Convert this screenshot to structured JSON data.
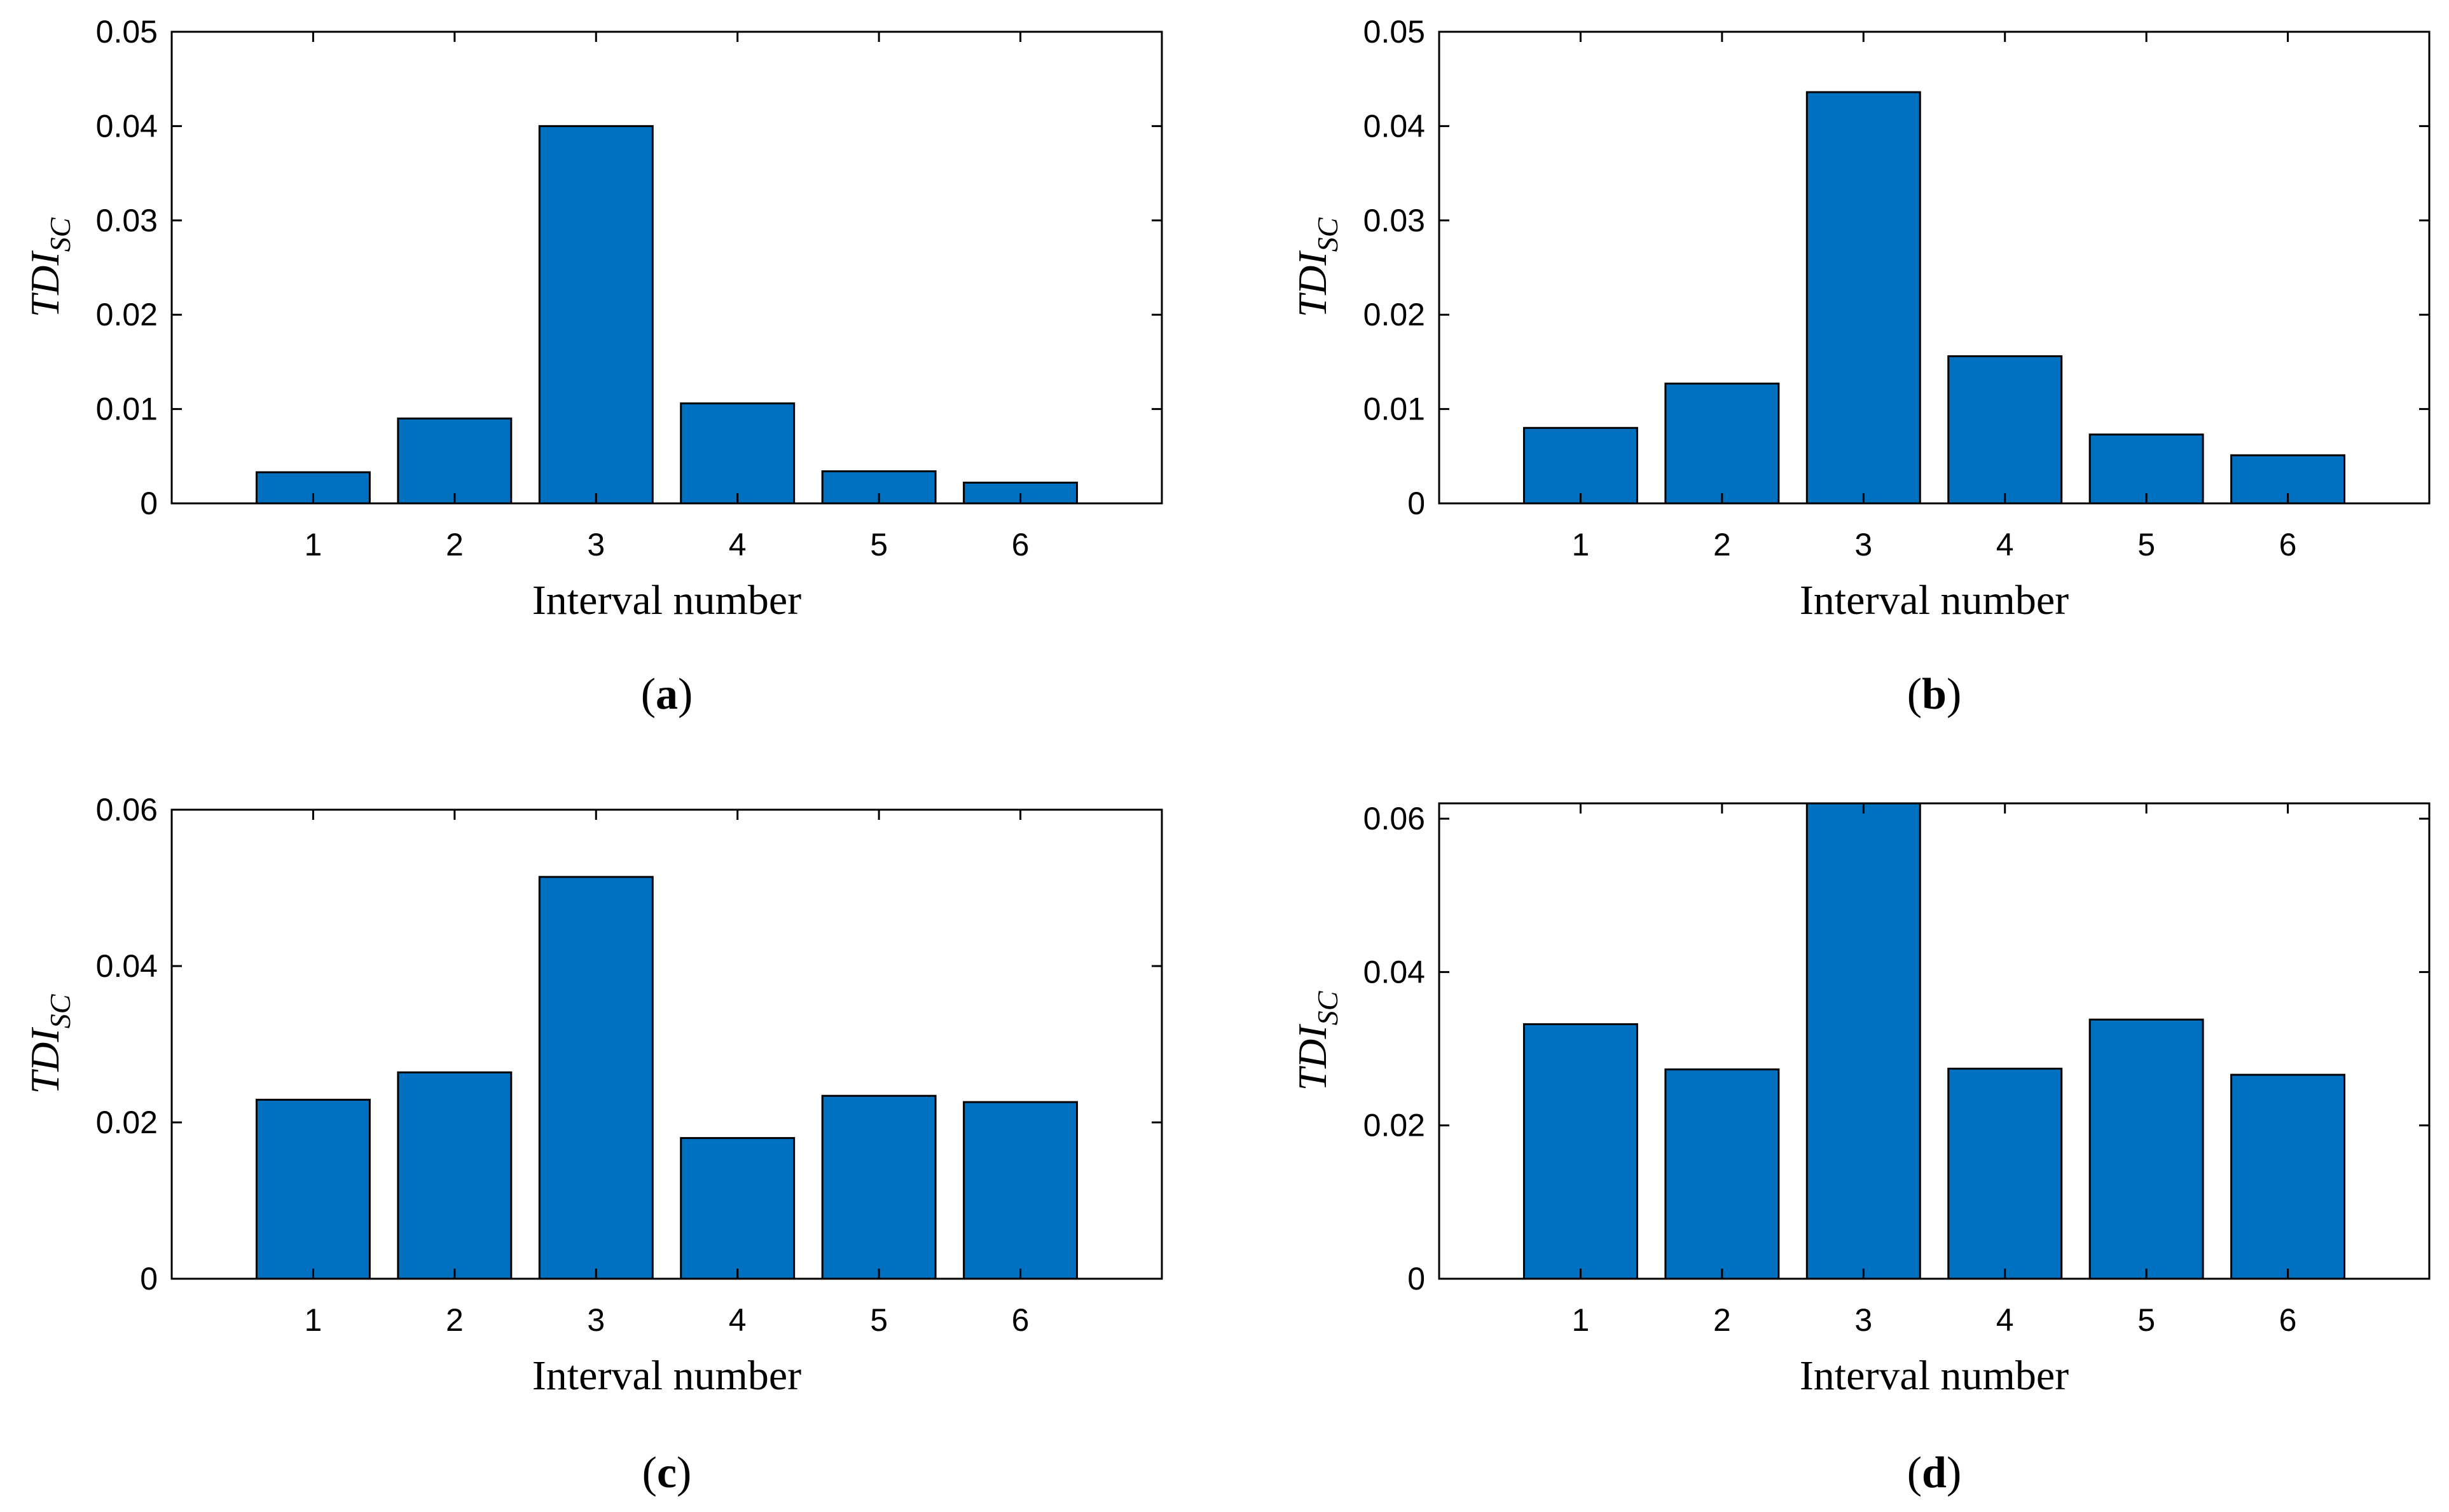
{
  "colors": {
    "bar_fill": "#0070C0",
    "bar_stroke": "#000000",
    "axes": "#000000"
  },
  "chart_data": [
    {
      "panel": "a",
      "caption_open": "(",
      "caption_letter": "a",
      "caption_close": ")",
      "type": "bar",
      "categories": [
        "1",
        "2",
        "3",
        "4",
        "5",
        "6"
      ],
      "values": [
        0.0033,
        0.009,
        0.04,
        0.0106,
        0.0034,
        0.0022
      ],
      "xlabel": "Interval number",
      "ylabel_main": "TDI",
      "ylabel_sub": "SC",
      "ylim": [
        0,
        0.05
      ],
      "yticks": [
        "0",
        "0.01",
        "0.02",
        "0.03",
        "0.04",
        "0.05"
      ],
      "ytick_values": [
        0,
        0.01,
        0.02,
        0.03,
        0.04,
        0.05
      ],
      "xlim": [
        0,
        7
      ]
    },
    {
      "panel": "b",
      "caption_open": "(",
      "caption_letter": "b",
      "caption_close": ")",
      "type": "bar",
      "categories": [
        "1",
        "2",
        "3",
        "4",
        "5",
        "6"
      ],
      "values": [
        0.008,
        0.0127,
        0.0436,
        0.0156,
        0.0073,
        0.0051
      ],
      "xlabel": "Interval number",
      "ylabel_main": "TDI",
      "ylabel_sub": "SC",
      "ylim": [
        0,
        0.05
      ],
      "yticks": [
        "0",
        "0.01",
        "0.02",
        "0.03",
        "0.04",
        "0.05"
      ],
      "ytick_values": [
        0,
        0.01,
        0.02,
        0.03,
        0.04,
        0.05
      ],
      "xlim": [
        0,
        7
      ]
    },
    {
      "panel": "c",
      "caption_open": "(",
      "caption_letter": "c",
      "caption_close": ")",
      "type": "bar",
      "categories": [
        "1",
        "2",
        "3",
        "4",
        "5",
        "6"
      ],
      "values": [
        0.0229,
        0.0264,
        0.0514,
        0.018,
        0.0234,
        0.0226
      ],
      "xlabel": "Interval number",
      "ylabel_main": "TDI",
      "ylabel_sub": "SC",
      "ylim": [
        0,
        0.06
      ],
      "yticks": [
        "0",
        "0.02",
        "0.04",
        "0.06"
      ],
      "ytick_values": [
        0,
        0.02,
        0.04,
        0.06
      ],
      "xlim": [
        0,
        7
      ]
    },
    {
      "panel": "d",
      "caption_open": "(",
      "caption_letter": "d",
      "caption_close": ")",
      "type": "bar",
      "categories": [
        "1",
        "2",
        "3",
        "4",
        "5",
        "6"
      ],
      "values": [
        0.0332,
        0.0273,
        0.062,
        0.0274,
        0.0338,
        0.0266
      ],
      "xlabel": "Interval number",
      "ylabel_main": "TDI",
      "ylabel_sub": "SC",
      "ylim": [
        0,
        0.062
      ],
      "yticks": [
        "0",
        "0.02",
        "0.04",
        "0.06"
      ],
      "ytick_values": [
        0,
        0.02,
        0.04,
        0.06
      ],
      "xlim": [
        0,
        7
      ]
    }
  ]
}
